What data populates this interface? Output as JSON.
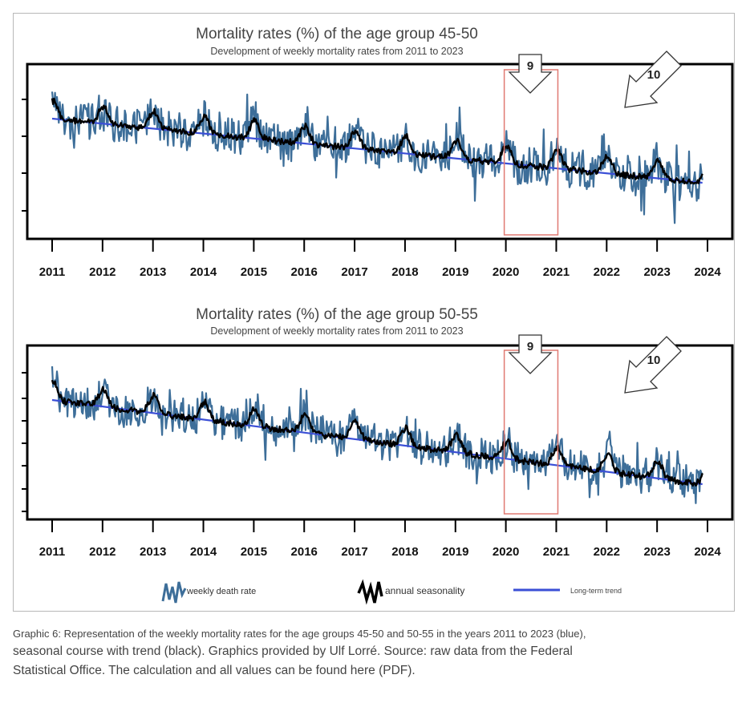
{
  "chart_data": [
    {
      "type": "line",
      "title": "Mortality rates (%) of the age group 45-50",
      "subtitle": "Development of weekly mortality rates from 2011 to 2023",
      "x_ticks": [
        "2011",
        "2012",
        "2013",
        "2014",
        "2015",
        "2016",
        "2017",
        "2018",
        "2019",
        "2020",
        "2021",
        "2022",
        "2023",
        "2024"
      ],
      "xlim": [
        2011,
        2024
      ],
      "y_tick_labels_shown": false,
      "series": [
        {
          "name": "weekly death rate",
          "color": "#3d6e99"
        },
        {
          "name": "annual seasonality",
          "color": "#000000"
        },
        {
          "name": "Long-term trend",
          "color": "#3b4fd6"
        }
      ],
      "annotations": [
        {
          "label": "9",
          "span": [
            2020,
            2021
          ],
          "box_color": "#e07a72"
        },
        {
          "label": "10",
          "at": 2023
        }
      ]
    },
    {
      "type": "line",
      "title": "Mortality rates (%) of the age group 50-55",
      "subtitle": "Development of weekly mortality rates from 2011 to 2023",
      "x_ticks": [
        "2011",
        "2012",
        "2013",
        "2014",
        "2015",
        "2016",
        "2017",
        "2018",
        "2019",
        "2020",
        "2021",
        "2022",
        "2023",
        "2024"
      ],
      "xlim": [
        2011,
        2024
      ],
      "y_tick_labels_shown": false,
      "series": [
        {
          "name": "weekly death rate",
          "color": "#3d6e99"
        },
        {
          "name": "annual seasonality",
          "color": "#000000"
        },
        {
          "name": "Long-term trend",
          "color": "#3b4fd6"
        }
      ],
      "annotations": [
        {
          "label": "9",
          "span": [
            2020,
            2021
          ],
          "box_color": "#e07a72"
        },
        {
          "label": "10",
          "at": 2023
        }
      ]
    }
  ],
  "legend": {
    "weekly": "weekly death rate",
    "seasonal": "annual seasonality",
    "trend": "Long-term trend"
  },
  "caption": {
    "line1": "Graphic 6: Representation of the weekly mortality rates for the age groups 45-50 and 50-55 in the years 2011 to 2023 (blue),",
    "line2": "seasonal course with trend (black). Graphics provided by Ulf Lorré. Source: raw data from the Federal",
    "line3": "Statistical Office. The calculation and all values can be found here (PDF)."
  }
}
